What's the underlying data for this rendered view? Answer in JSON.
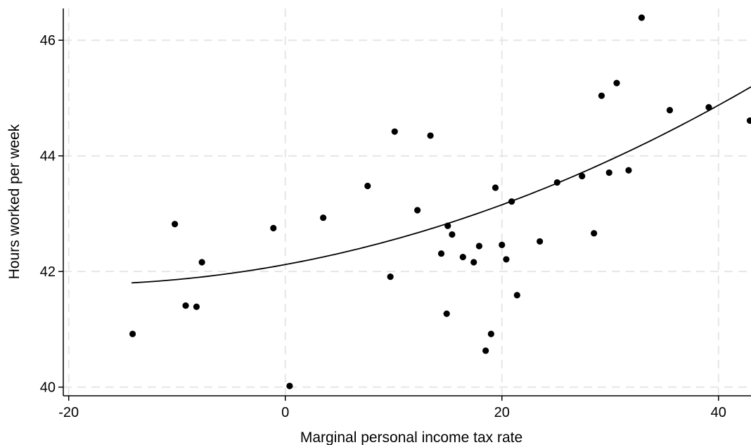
{
  "chart_data": {
    "type": "scatter",
    "title": "",
    "xlabel": "Marginal personal income tax rate",
    "ylabel": "Hours worked per week",
    "xlim": [
      -20.5,
      43
    ],
    "ylim": [
      39.85,
      46.55
    ],
    "xticks": [
      -20,
      0,
      20,
      40
    ],
    "yticks": [
      40,
      42,
      44,
      46
    ],
    "grid": true,
    "points": [
      {
        "x": -14.1,
        "y": 40.92
      },
      {
        "x": -10.2,
        "y": 42.82
      },
      {
        "x": -9.2,
        "y": 41.41
      },
      {
        "x": -8.2,
        "y": 41.39
      },
      {
        "x": -7.7,
        "y": 42.16
      },
      {
        "x": -1.1,
        "y": 42.75
      },
      {
        "x": 0.4,
        "y": 40.02
      },
      {
        "x": 3.5,
        "y": 42.93
      },
      {
        "x": 7.6,
        "y": 43.48
      },
      {
        "x": 9.7,
        "y": 41.91
      },
      {
        "x": 10.1,
        "y": 44.42
      },
      {
        "x": 12.2,
        "y": 43.06
      },
      {
        "x": 13.4,
        "y": 44.35
      },
      {
        "x": 14.4,
        "y": 42.31
      },
      {
        "x": 14.9,
        "y": 41.27
      },
      {
        "x": 15.0,
        "y": 42.79
      },
      {
        "x": 15.4,
        "y": 42.64
      },
      {
        "x": 16.4,
        "y": 42.25
      },
      {
        "x": 17.4,
        "y": 42.16
      },
      {
        "x": 17.9,
        "y": 42.44
      },
      {
        "x": 18.5,
        "y": 40.63
      },
      {
        "x": 19.0,
        "y": 40.92
      },
      {
        "x": 19.4,
        "y": 43.45
      },
      {
        "x": 20.0,
        "y": 42.46
      },
      {
        "x": 20.4,
        "y": 42.21
      },
      {
        "x": 20.9,
        "y": 43.21
      },
      {
        "x": 21.4,
        "y": 41.59
      },
      {
        "x": 23.5,
        "y": 42.52
      },
      {
        "x": 25.1,
        "y": 43.54
      },
      {
        "x": 27.4,
        "y": 43.65
      },
      {
        "x": 28.5,
        "y": 42.66
      },
      {
        "x": 29.2,
        "y": 45.04
      },
      {
        "x": 29.9,
        "y": 43.71
      },
      {
        "x": 30.6,
        "y": 45.26
      },
      {
        "x": 31.7,
        "y": 43.75
      },
      {
        "x": 32.9,
        "y": 46.39
      },
      {
        "x": 35.5,
        "y": 44.79
      },
      {
        "x": 39.1,
        "y": 44.84
      },
      {
        "x": 42.9,
        "y": 44.61
      }
    ],
    "fit": {
      "type": "quadratic",
      "x_range": [
        -14.2,
        43
      ],
      "coefficients": [
        42.12,
        0.0345,
        0.00086
      ]
    }
  }
}
